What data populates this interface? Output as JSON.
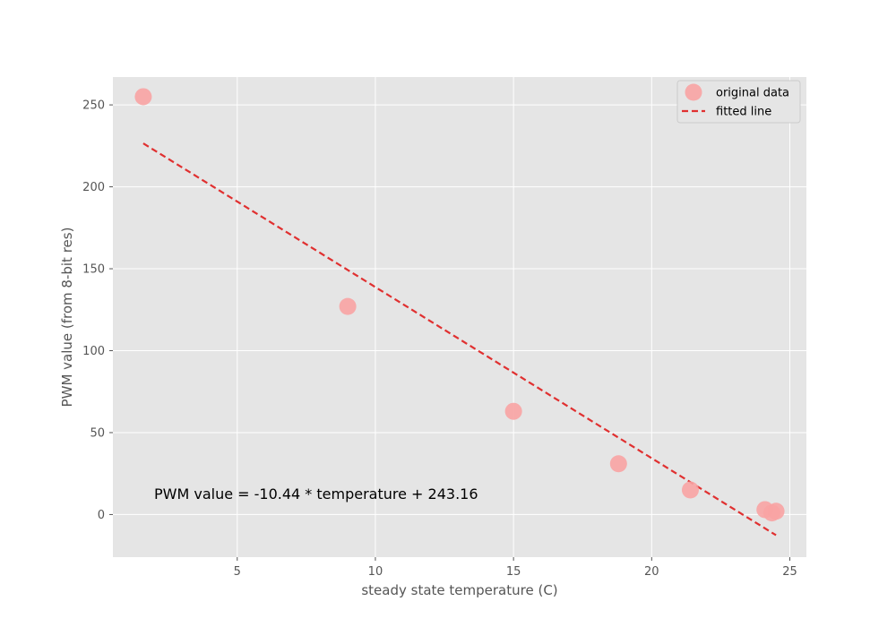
{
  "chart_data": {
    "type": "scatter",
    "xlabel": "steady state temperature (C)",
    "ylabel": "PWM value (from 8-bit res)",
    "xlim": [
      0.5,
      25.6
    ],
    "ylim": [
      -26,
      267
    ],
    "xticks": [
      5,
      10,
      15,
      20,
      25
    ],
    "yticks": [
      0,
      50,
      100,
      150,
      200,
      250
    ],
    "grid": true,
    "legend_position": "top-right",
    "series": [
      {
        "name": "original data",
        "kind": "scatter",
        "color": "#f8a3a3",
        "x": [
          1.6,
          9.0,
          15.0,
          18.8,
          21.4,
          24.1,
          24.35,
          24.5
        ],
        "y": [
          255,
          127,
          63,
          31,
          15,
          3,
          1,
          2
        ]
      },
      {
        "name": "fitted line",
        "kind": "line",
        "style": "dashed",
        "color": "#e03030",
        "x": [
          1.6,
          24.5
        ],
        "y": [
          226.5,
          -12.6
        ]
      }
    ],
    "annotation": "PWM value = -10.44 * temperature + 243.16"
  }
}
